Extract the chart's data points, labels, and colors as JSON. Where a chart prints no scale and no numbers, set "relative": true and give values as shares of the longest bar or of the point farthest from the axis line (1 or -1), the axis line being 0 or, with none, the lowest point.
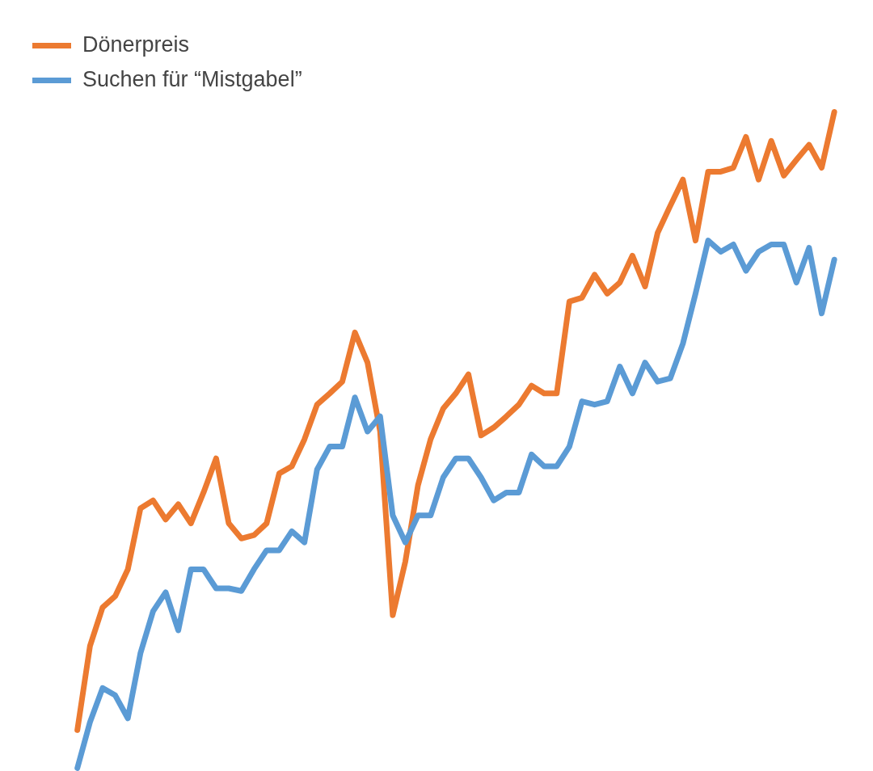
{
  "chart_data": {
    "type": "line",
    "relative": true,
    "legend": "top left",
    "categories": [
      null,
      null,
      null,
      null,
      null,
      null,
      null,
      null,
      null,
      null,
      null,
      null,
      null,
      null,
      null,
      null,
      null,
      null,
      null,
      null,
      null,
      null,
      null,
      null,
      null,
      null,
      null,
      null,
      null,
      null,
      null,
      null,
      null,
      null,
      null,
      null,
      null,
      null,
      null,
      null,
      null,
      null,
      null,
      null,
      null,
      null,
      null,
      null,
      null,
      null,
      null,
      null,
      null,
      null,
      null,
      null,
      null,
      null,
      null,
      null,
      null
    ],
    "series": [
      {
        "name": "Dönerpreis",
        "color": "#ec7a30",
        "values": [
          0.058,
          0.186,
          0.245,
          0.262,
          0.303,
          0.396,
          0.408,
          0.379,
          0.402,
          0.373,
          0.42,
          0.472,
          0.373,
          0.35,
          0.355,
          0.373,
          0.449,
          0.46,
          0.501,
          0.554,
          0.571,
          0.589,
          0.664,
          0.618,
          0.513,
          0.233,
          0.315,
          0.431,
          0.501,
          0.548,
          0.571,
          0.6,
          0.507,
          0.519,
          0.536,
          0.554,
          0.583,
          0.571,
          0.571,
          0.711,
          0.717,
          0.752,
          0.723,
          0.74,
          0.781,
          0.734,
          0.816,
          0.857,
          0.897,
          0.804,
          0.909,
          0.909,
          0.915,
          0.962,
          0.897,
          0.956,
          0.903,
          0.927,
          0.95,
          0.915,
          1
        ]
      },
      {
        "name": "Suchen für “Mistgabel”",
        "color": "#5b9bd5",
        "values": [
          0,
          0.07,
          0.122,
          0.111,
          0.076,
          0.175,
          0.239,
          0.268,
          0.21,
          0.303,
          0.303,
          0.274,
          0.274,
          0.27,
          0.303,
          0.332,
          0.332,
          0.361,
          0.344,
          0.455,
          0.49,
          0.49,
          0.565,
          0.513,
          0.536,
          0.385,
          0.344,
          0.385,
          0.385,
          0.443,
          0.472,
          0.472,
          0.443,
          0.408,
          0.42,
          0.42,
          0.478,
          0.46,
          0.46,
          0.49,
          0.559,
          0.554,
          0.559,
          0.612,
          0.571,
          0.618,
          0.589,
          0.594,
          0.647,
          0.723,
          0.804,
          0.787,
          0.798,
          0.758,
          0.787,
          0.798,
          0.798,
          0.74,
          0.793,
          0.693,
          0.775
        ]
      }
    ]
  }
}
